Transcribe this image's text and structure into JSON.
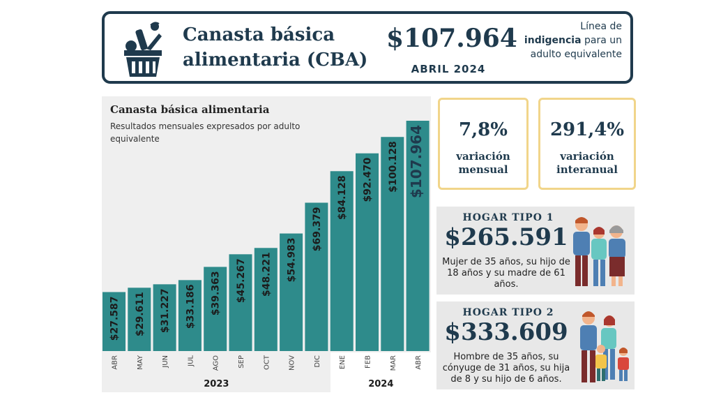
{
  "header": {
    "title": "Canasta básica alimentaria (CBA)",
    "price": "$107.964",
    "date": "ABRIL 2024",
    "note_pre": "Línea de",
    "note_bold": "indigencia",
    "note_post": "para un adulto equivalente",
    "icon": "basket-icon"
  },
  "stats": {
    "monthly": {
      "value": "7,8%",
      "label": "variación mensual"
    },
    "yearly": {
      "value": "291,4%",
      "label": "variación interanual"
    }
  },
  "hogar1": {
    "title": "HOGAR TIPO 1",
    "price": "$265.591",
    "desc": "Mujer de 35 años, su hijo de 18 años y su madre de 61 años.",
    "icon": "family-icon"
  },
  "hogar2": {
    "title": "HOGAR TIPO 2",
    "price": "$333.609",
    "desc": "Hombre de 35 años, su cónyuge de 31 años, su hija de 8 y su hijo de 6 años.",
    "icon": "family-icon"
  },
  "colors": {
    "bar": "#2e8b8b",
    "navy": "#1f3a4d",
    "gold": "#f1d58a",
    "panel": "#efefef"
  },
  "chart_data": {
    "type": "bar",
    "title": "Canasta básica alimentaria",
    "subtitle": "Resultados mensuales expresados por adulto equivalente",
    "categories": [
      "ABR",
      "MAY",
      "JUN",
      "JUL",
      "AGO",
      "SEP",
      "OCT",
      "NOV",
      "DIC",
      "ENE",
      "FEB",
      "MAR",
      "ABR"
    ],
    "values": [
      27587,
      29611,
      31227,
      33186,
      39363,
      45267,
      48221,
      54983,
      69379,
      84128,
      92470,
      100128,
      107964
    ],
    "labels": [
      "$27.587",
      "$29.611",
      "$31.227",
      "$33.186",
      "$39.363",
      "$45.267",
      "$48.221",
      "$54.983",
      "$69.379",
      "$84.128",
      "$92.470",
      "$100.128",
      "$107.964"
    ],
    "groups": [
      {
        "label": "2023",
        "count": 9
      },
      {
        "label": "2024",
        "count": 4
      }
    ],
    "ylim": [
      0,
      110000
    ]
  }
}
